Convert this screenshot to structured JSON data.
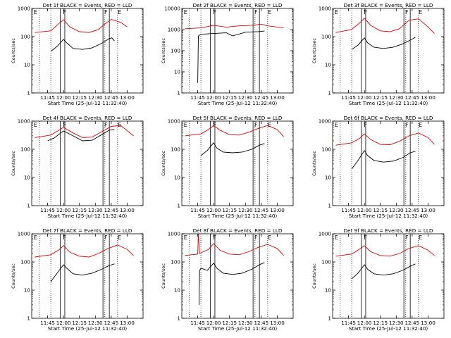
{
  "chart_data": [
    {
      "type": "line",
      "title": "Det 1f BLACK = Events, RED = LLD",
      "xlabel": "Start Time (25-Jul-12 11:32:40)",
      "ylabel": "Counts/sec",
      "ylim": [
        1,
        1000
      ],
      "yscale": "log",
      "grid": false,
      "x_ticks": [
        "11:45",
        "12:00",
        "12:15",
        "12:30",
        "12:45",
        "13:00"
      ],
      "y_ticks": [
        "1",
        "10",
        "100",
        "1000"
      ],
      "event_labels": [
        "E",
        "F",
        "F",
        "E"
      ],
      "series": [
        {
          "name": "Events",
          "color": "#000000",
          "x": [
            11.8,
            11.9,
            12.0,
            12.05,
            12.15,
            12.3,
            12.45,
            12.6,
            12.72,
            12.76,
            12.8
          ],
          "y": [
            30,
            45,
            80,
            60,
            38,
            35,
            40,
            58,
            85,
            90,
            70
          ]
        },
        {
          "name": "LLD",
          "color": "#e00000",
          "x": [
            11.55,
            11.8,
            11.92,
            12.0,
            12.1,
            12.25,
            12.4,
            12.55,
            12.65,
            12.75,
            12.9,
            13.0
          ],
          "y": [
            140,
            160,
            280,
            400,
            220,
            150,
            140,
            180,
            280,
            410,
            320,
            220
          ]
        }
      ]
    },
    {
      "type": "line",
      "title": "Det 2f BLACK = Events, RED = LLD",
      "xlabel": "Start Time (25-Jul-12 11:32:40)",
      "ylabel": "Counts/sec",
      "ylim": [
        1,
        10000
      ],
      "yscale": "log",
      "grid": false,
      "x_ticks": [
        "11:45",
        "12:00",
        "12:15",
        "12:30",
        "12:45",
        "13:00"
      ],
      "y_ticks": [
        "1",
        "10",
        "100",
        "1000",
        "10000"
      ],
      "event_labels": [
        "E",
        "F",
        "F",
        "E"
      ],
      "series": [
        {
          "name": "Events",
          "color": "#000000",
          "x": [
            11.75,
            11.76,
            11.8,
            12.0,
            12.2,
            12.3,
            12.5,
            12.7,
            12.8
          ],
          "y": [
            3,
            500,
            600,
            650,
            700,
            500,
            750,
            800,
            850
          ]
        },
        {
          "name": "LLD",
          "color": "#e00000",
          "x": [
            11.55,
            11.8,
            12.0,
            12.2,
            12.4,
            12.6,
            12.75,
            12.85,
            13.1
          ],
          "y": [
            1100,
            1200,
            1600,
            1300,
            1500,
            1600,
            1800,
            1500,
            1200
          ]
        }
      ]
    },
    {
      "type": "line",
      "title": "Det 3f BLACK = Events, RED = LLD",
      "xlabel": "Start Time (25-Jul-12 11:32:40)",
      "ylabel": "Counts/sec",
      "ylim": [
        1,
        1000
      ],
      "yscale": "log",
      "grid": false,
      "x_ticks": [
        "11:45",
        "12:00",
        "12:15",
        "12:30",
        "12:45",
        "13:00"
      ],
      "y_ticks": [
        "1",
        "10",
        "100",
        "1000"
      ],
      "event_labels": [
        "E",
        "F",
        "F",
        "E"
      ],
      "series": [
        {
          "name": "Events",
          "color": "#000000",
          "x": [
            11.8,
            11.9,
            12.0,
            12.05,
            12.15,
            12.3,
            12.45,
            12.6,
            12.72,
            12.8
          ],
          "y": [
            35,
            50,
            90,
            60,
            42,
            38,
            42,
            55,
            75,
            95
          ]
        },
        {
          "name": "LLD",
          "color": "#e00000",
          "x": [
            11.55,
            11.8,
            11.92,
            12.0,
            12.1,
            12.25,
            12.4,
            12.55,
            12.7,
            12.85,
            13.0,
            13.1
          ],
          "y": [
            140,
            180,
            300,
            450,
            250,
            160,
            150,
            190,
            380,
            430,
            220,
            130
          ]
        }
      ]
    },
    {
      "type": "line",
      "title": "Det 4f BLACK = Events, RED = LLD",
      "xlabel": "Start Time (25-Jul-12 11:32:40)",
      "ylabel": "Counts/sec",
      "ylim": [
        1,
        1000
      ],
      "yscale": "log",
      "grid": false,
      "x_ticks": [
        "11:45",
        "12:00",
        "12:15",
        "12:30",
        "12:45",
        "13:00"
      ],
      "y_ticks": [
        "1",
        "10",
        "100",
        "1000"
      ],
      "event_labels": [
        "E",
        "F",
        "F",
        "E"
      ],
      "series": [
        {
          "name": "Events",
          "color": "#000000",
          "x": [
            11.75,
            11.85,
            12.0,
            12.15,
            12.3,
            12.45,
            12.6,
            12.72,
            12.8
          ],
          "y": [
            200,
            250,
            450,
            300,
            200,
            210,
            330,
            480,
            500
          ]
        },
        {
          "name": "LLD",
          "color": "#e00000",
          "x": [
            11.55,
            11.8,
            12.0,
            12.15,
            12.3,
            12.45,
            12.6,
            12.75,
            12.9,
            13.1
          ],
          "y": [
            260,
            320,
            600,
            380,
            260,
            270,
            420,
            650,
            700,
            300
          ]
        }
      ]
    },
    {
      "type": "line",
      "title": "Det 5f BLACK = Events, RED = LLD",
      "xlabel": "Start Time (25-Jul-12 11:32:40)",
      "ylabel": "Counts/sec",
      "ylim": [
        1,
        1000
      ],
      "yscale": "log",
      "grid": false,
      "x_ticks": [
        "11:45",
        "12:00",
        "12:15",
        "12:30",
        "12:45",
        "13:00"
      ],
      "y_ticks": [
        "1",
        "10",
        "100",
        "1000"
      ],
      "event_labels": [
        "E",
        "F",
        "F",
        "E"
      ],
      "series": [
        {
          "name": "Events",
          "color": "#000000",
          "x": [
            11.8,
            11.9,
            12.0,
            12.05,
            12.15,
            12.3,
            12.45,
            12.6,
            12.72,
            12.8
          ],
          "y": [
            60,
            90,
            170,
            110,
            80,
            75,
            80,
            100,
            140,
            160
          ]
        },
        {
          "name": "LLD",
          "color": "#e00000",
          "x": [
            11.55,
            11.8,
            11.92,
            12.0,
            12.1,
            12.25,
            12.4,
            12.55,
            12.7,
            12.85,
            13.0,
            13.1
          ],
          "y": [
            300,
            350,
            500,
            700,
            480,
            330,
            320,
            400,
            550,
            700,
            500,
            280
          ]
        }
      ]
    },
    {
      "type": "line",
      "title": "Det 6f BLACK = Events, RED = LLD",
      "xlabel": "Start Time (25-Jul-12 11:32:40)",
      "ylabel": "Counts/sec",
      "ylim": [
        1,
        1000
      ],
      "yscale": "log",
      "grid": false,
      "x_ticks": [
        "11:45",
        "12:00",
        "12:15",
        "12:30",
        "12:45",
        "13:00"
      ],
      "y_ticks": [
        "1",
        "10",
        "100",
        "1000"
      ],
      "event_labels": [
        "E",
        "F",
        "F",
        "E"
      ],
      "series": [
        {
          "name": "Events",
          "color": "#000000",
          "x": [
            11.8,
            11.9,
            12.0,
            12.05,
            12.15,
            12.3,
            12.45,
            12.6,
            12.72,
            12.8
          ],
          "y": [
            20,
            40,
            90,
            60,
            40,
            35,
            38,
            50,
            75,
            85
          ]
        },
        {
          "name": "LLD",
          "color": "#e00000",
          "x": [
            11.55,
            11.8,
            11.92,
            12.0,
            12.1,
            12.25,
            12.4,
            12.55,
            12.7,
            12.85,
            13.0,
            13.1
          ],
          "y": [
            140,
            170,
            240,
            350,
            220,
            150,
            145,
            190,
            300,
            380,
            260,
            150
          ]
        }
      ]
    },
    {
      "type": "line",
      "title": "Det 7f BLACK = Events, RED = LLD",
      "xlabel": "Start Time (25-Jul-12 11:32:40)",
      "ylabel": "Counts/sec",
      "ylim": [
        1,
        1000
      ],
      "yscale": "log",
      "grid": false,
      "x_ticks": [
        "11:45",
        "12:00",
        "12:15",
        "12:30",
        "12:45",
        "13:00"
      ],
      "y_ticks": [
        "1",
        "10",
        "100",
        "1000"
      ],
      "event_labels": [
        "E",
        "F",
        "F",
        "E"
      ],
      "series": [
        {
          "name": "Events",
          "color": "#000000",
          "x": [
            11.8,
            11.9,
            12.0,
            12.05,
            12.15,
            12.3,
            12.45,
            12.6,
            12.72,
            12.8
          ],
          "y": [
            20,
            40,
            80,
            60,
            38,
            34,
            40,
            55,
            75,
            85
          ]
        },
        {
          "name": "LLD",
          "color": "#e00000",
          "x": [
            11.55,
            11.8,
            11.92,
            12.0,
            12.1,
            12.25,
            12.4,
            12.55,
            12.7,
            12.85,
            13.0,
            13.1
          ],
          "y": [
            150,
            180,
            260,
            380,
            220,
            160,
            150,
            200,
            300,
            400,
            280,
            170
          ]
        }
      ]
    },
    {
      "type": "line",
      "title": "Det 8f BLACK = Events, RED = LLD",
      "xlabel": "Start Time (25-Jul-12 11:32:40)",
      "ylabel": "Counts/sec",
      "ylim": [
        1,
        1000
      ],
      "yscale": "log",
      "grid": false,
      "x_ticks": [
        "11:45",
        "12:00",
        "12:15",
        "12:30",
        "12:45",
        "13:00"
      ],
      "y_ticks": [
        "1",
        "10",
        "100",
        "1000"
      ],
      "event_labels": [
        "E",
        "F",
        "F",
        "E"
      ],
      "series": [
        {
          "name": "Events",
          "color": "#000000",
          "x": [
            11.77,
            11.78,
            11.8,
            11.9,
            12.0,
            12.05,
            12.15,
            12.3,
            12.45,
            12.6,
            12.72,
            12.8
          ],
          "y": [
            3,
            50,
            60,
            50,
            90,
            60,
            40,
            36,
            40,
            55,
            80,
            95
          ]
        },
        {
          "name": "LLD",
          "color": "#e00000",
          "x": [
            11.55,
            11.75,
            11.76,
            11.78,
            11.8,
            11.92,
            12.0,
            12.1,
            12.25,
            12.4,
            12.55,
            12.7,
            12.85,
            13.0,
            13.1
          ],
          "y": [
            170,
            190,
            1000,
            200,
            210,
            280,
            450,
            260,
            190,
            180,
            230,
            330,
            420,
            300,
            170
          ]
        }
      ]
    },
    {
      "type": "line",
      "title": "Det 9f BLACK = Events, RED = LLD",
      "xlabel": "Start Time (25-Jul-12 11:32:40)",
      "ylabel": "Counts/sec",
      "ylim": [
        1,
        1000
      ],
      "yscale": "log",
      "grid": false,
      "x_ticks": [
        "11:45",
        "12:00",
        "12:15",
        "12:30",
        "12:45",
        "13:00"
      ],
      "y_ticks": [
        "1",
        "10",
        "100",
        "1000"
      ],
      "event_labels": [
        "E",
        "F",
        "F",
        "E"
      ],
      "series": [
        {
          "name": "Events",
          "color": "#000000",
          "x": [
            11.8,
            11.9,
            12.0,
            12.05,
            12.15,
            12.3,
            12.45,
            12.6,
            12.72,
            12.8
          ],
          "y": [
            25,
            40,
            80,
            55,
            38,
            34,
            38,
            50,
            70,
            85
          ]
        },
        {
          "name": "LLD",
          "color": "#e00000",
          "x": [
            11.55,
            11.8,
            11.92,
            12.0,
            12.1,
            12.25,
            12.4,
            12.55,
            12.7,
            12.85,
            13.0,
            13.1
          ],
          "y": [
            160,
            190,
            280,
            380,
            230,
            170,
            160,
            200,
            300,
            380,
            260,
            170
          ]
        }
      ]
    }
  ]
}
